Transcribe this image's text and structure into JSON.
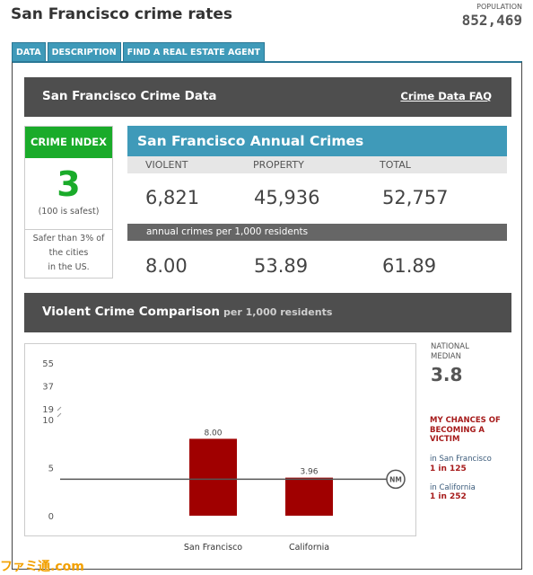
{
  "header": {
    "title": "San Francisco crime rates",
    "population_label": "POPULATION",
    "population_value": "852,469"
  },
  "tabs": [
    {
      "label": "DATA"
    },
    {
      "label": "DESCRIPTION"
    },
    {
      "label": "FIND A REAL ESTATE AGENT"
    }
  ],
  "crime_data": {
    "title": "San Francisco Crime Data",
    "faq_link": "Crime Data FAQ"
  },
  "crime_index": {
    "label": "CRIME INDEX",
    "value": "3",
    "note": "(100 is safest)",
    "safer_line1": "Safer than 3% of",
    "safer_line2": "the cities",
    "safer_line3": "in the US."
  },
  "annual": {
    "title": "San Francisco Annual Crimes",
    "col_violent": "VIOLENT",
    "col_property": "PROPERTY",
    "col_total": "TOTAL",
    "violent": "6,821",
    "property": "45,936",
    "total": "52,757",
    "per_label": "annual crimes per 1,000 residents",
    "violent_rate": "8.00",
    "property_rate": "53.89",
    "total_rate": "61.89"
  },
  "comparison": {
    "title": "Violent Crime Comparison",
    "subtitle": "per 1,000 residents",
    "national_median_label_1": "NATIONAL",
    "national_median_label_2": "MEDIAN",
    "national_median_value": "3.8",
    "chances_line1": "MY CHANCES OF",
    "chances_line2": "BECOMING A",
    "chances_line3": "VICTIM",
    "sf_label": "in San Francisco",
    "sf_value": "1 in 125",
    "ca_label": "in California",
    "ca_value": "1 in 252"
  },
  "chart_data": {
    "type": "bar",
    "categories": [
      "San Francisco",
      "California"
    ],
    "values": [
      8.0,
      3.96
    ],
    "value_labels": [
      "8.00",
      "3.96"
    ],
    "y_tick_labels": [
      "0",
      "5",
      "10",
      "19",
      "37",
      "55"
    ],
    "y_ticks": [
      0,
      5,
      10,
      19,
      37,
      55
    ],
    "axis_break_between": [
      10,
      19
    ],
    "reference_line": {
      "label": "NM",
      "value": 3.8
    },
    "colors": {
      "bar": "#a00000",
      "line": "#555555"
    }
  },
  "watermark": "ファミ通.com"
}
